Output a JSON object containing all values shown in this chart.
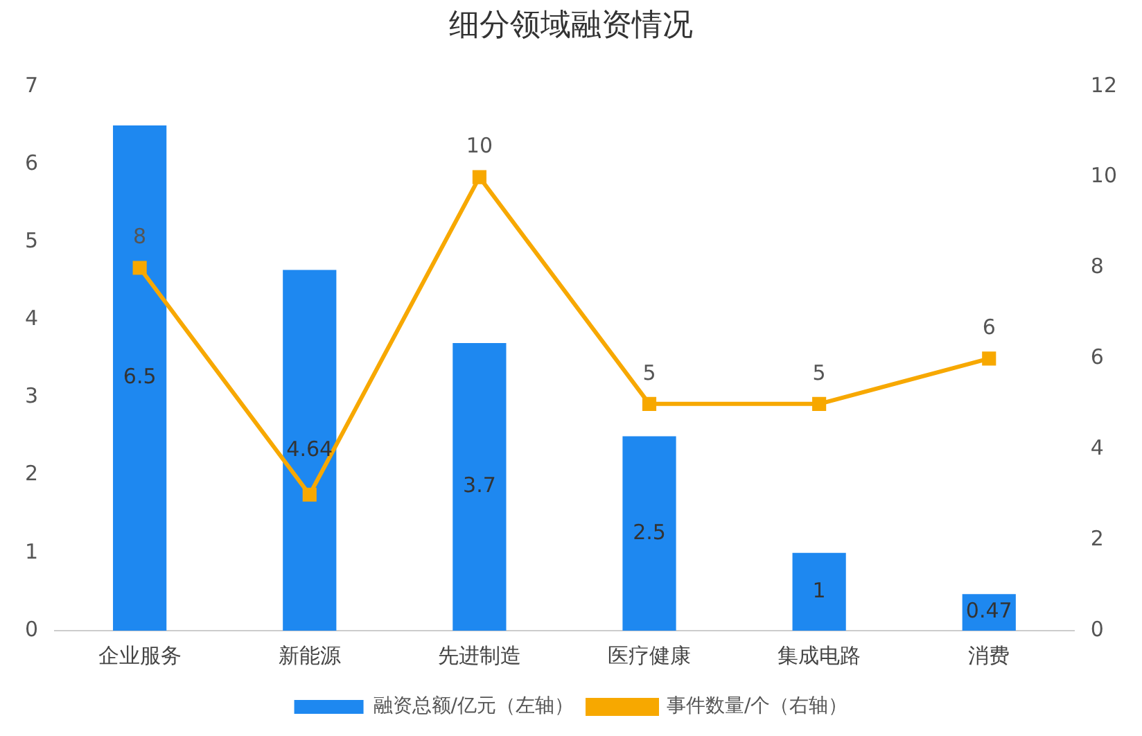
{
  "chart_data": {
    "type": "bar",
    "title": "细分领域融资情况",
    "categories": [
      "企业服务",
      "新能源",
      "先进制造",
      "医疗健康",
      "集成电路",
      "消费"
    ],
    "series": [
      {
        "name": "融资总额/亿元（左轴）",
        "color": "#1e88f0",
        "values": [
          6.5,
          4.64,
          3.7,
          2.5,
          1,
          0.47
        ],
        "value_labels": [
          "6.5",
          "4.64",
          "3.7",
          "2.5",
          "1",
          "0.47"
        ]
      },
      {
        "name": "事件数量/个（右轴）",
        "type": "line",
        "axis": "y2",
        "color": "#f7a800",
        "values": [
          8,
          3,
          10,
          5,
          5,
          6
        ],
        "value_labels": [
          "8",
          null,
          "10",
          "5",
          "5",
          "6"
        ]
      }
    ],
    "ylim": [
      0,
      7
    ],
    "yticks": [
      0,
      1,
      2,
      3,
      4,
      5,
      6,
      7
    ],
    "y2lim": [
      0,
      12
    ],
    "y2ticks": [
      0,
      2,
      4,
      6,
      8,
      10,
      12
    ],
    "grid": false,
    "legend": "bottom",
    "marker": "square",
    "line_style": "solid"
  }
}
